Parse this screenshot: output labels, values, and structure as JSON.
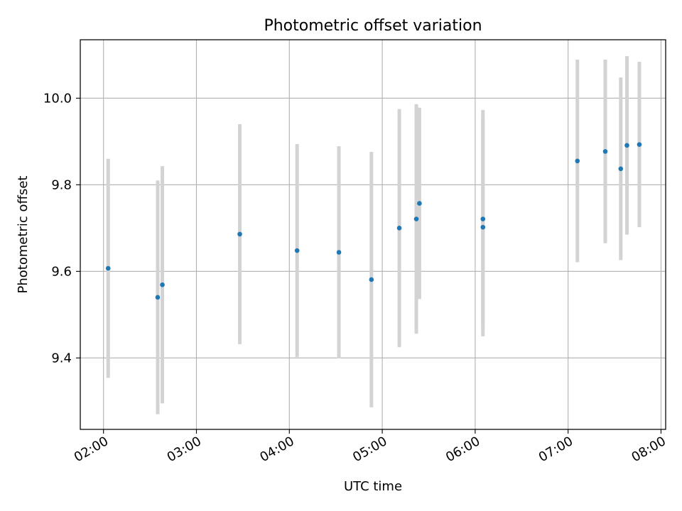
{
  "chart_data": {
    "type": "scatter",
    "title": "Photometric offset variation",
    "xlabel": "UTC time",
    "ylabel": "Photometric offset",
    "x_unit": "UTC",
    "xlim": [
      "01:45",
      "08:03"
    ],
    "ylim": [
      9.235,
      10.135
    ],
    "x_ticks": [
      "02:00",
      "03:00",
      "04:00",
      "05:00",
      "06:00",
      "07:00",
      "08:00"
    ],
    "y_ticks": [
      "9.4",
      "9.6",
      "9.8",
      "10.0"
    ],
    "grid": true,
    "colors": {
      "point": "#1f77b4",
      "errorbar": "#d3d3d3",
      "grid": "#b0b0b0"
    },
    "points": [
      {
        "x": "02:03",
        "y": 9.607,
        "err": 0.253
      },
      {
        "x": "02:35",
        "y": 9.54,
        "err": 0.27
      },
      {
        "x": "02:38",
        "y": 9.569,
        "err": 0.274
      },
      {
        "x": "03:28",
        "y": 9.686,
        "err": 0.254
      },
      {
        "x": "04:05",
        "y": 9.648,
        "err": 0.246
      },
      {
        "x": "04:32",
        "y": 9.644,
        "err": 0.245
      },
      {
        "x": "04:53",
        "y": 9.581,
        "err": 0.295
      },
      {
        "x": "05:11",
        "y": 9.7,
        "err": 0.275
      },
      {
        "x": "05:22",
        "y": 9.721,
        "err": 0.265
      },
      {
        "x": "05:24",
        "y": 9.757,
        "err": 0.221
      },
      {
        "x": "06:05",
        "y": 9.702,
        "err": 0.252
      },
      {
        "x": "06:05",
        "y": 9.721,
        "err": 0.252
      },
      {
        "x": "07:06",
        "y": 9.855,
        "err": 0.234
      },
      {
        "x": "07:24",
        "y": 9.877,
        "err": 0.212
      },
      {
        "x": "07:34",
        "y": 9.837,
        "err": 0.211
      },
      {
        "x": "07:38",
        "y": 9.891,
        "err": 0.206
      },
      {
        "x": "07:46",
        "y": 9.893,
        "err": 0.191
      }
    ]
  }
}
